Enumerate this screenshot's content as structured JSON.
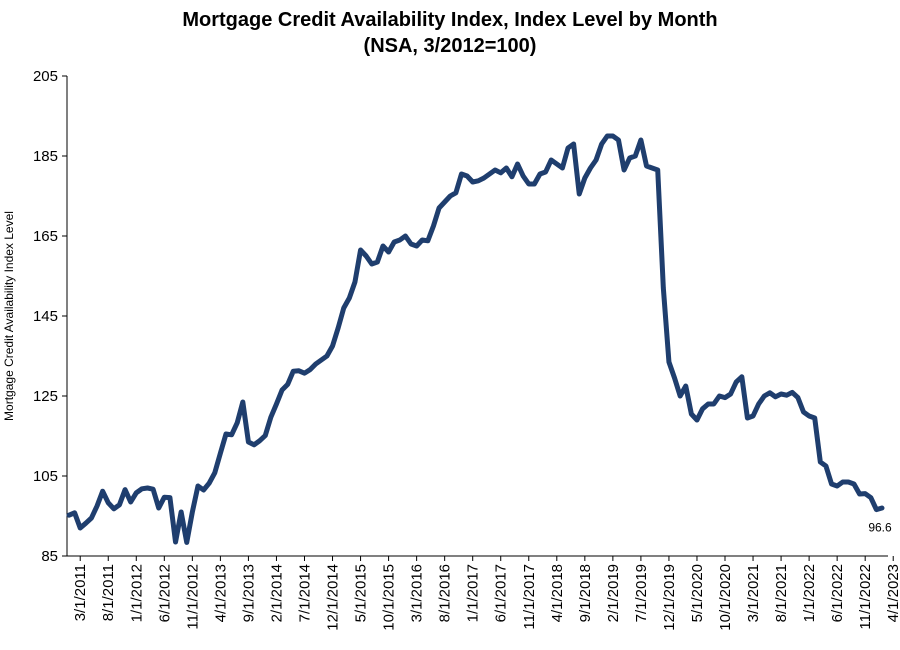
{
  "chart_data": {
    "type": "line",
    "title": "Mortgage Credit Availability Index, Index Level by Month",
    "subtitle": "(NSA, 3/2012=100)",
    "xlabel": "",
    "ylabel": "Mortgage Credit Availability Index Level",
    "ylim": [
      85,
      205
    ],
    "yticks": [
      85,
      105,
      125,
      145,
      165,
      185,
      205
    ],
    "xticks": [
      "3/1/2011",
      "8/1/2011",
      "1/1/2012",
      "6/1/2012",
      "11/1/2012",
      "4/1/2013",
      "9/1/2013",
      "2/1/2014",
      "7/1/2014",
      "12/1/2014",
      "5/1/2015",
      "10/1/2015",
      "3/1/2016",
      "8/1/2016",
      "1/1/2017",
      "6/1/2017",
      "11/1/2017",
      "4/1/2018",
      "9/1/2018",
      "2/1/2019",
      "7/1/2019",
      "12/1/2019",
      "5/1/2020",
      "10/1/2020",
      "3/1/2021",
      "8/1/2021",
      "1/1/2022",
      "6/1/2022",
      "11/1/2022",
      "4/1/2023"
    ],
    "grid": false,
    "legend": "none",
    "color": "#1f3e6e",
    "annotation": "96.6",
    "series": [
      {
        "start": "2011-01",
        "values": [
          95.2,
          95.8,
          92.0,
          93.2,
          94.5,
          97.5,
          101.2,
          98.3,
          96.8,
          97.8,
          101.6,
          98.5,
          100.8,
          101.8,
          102.0,
          101.7,
          97.0,
          99.7,
          99.6,
          88.5,
          96.0,
          88.4,
          96.0,
          102.5,
          101.5,
          103.2,
          105.8,
          110.7,
          115.5,
          115.3,
          118.3,
          123.5,
          113.5,
          112.8,
          113.8,
          115.1,
          119.7,
          123.0,
          126.5,
          127.9,
          131.2,
          131.3,
          130.7,
          131.6,
          133.0,
          134.0,
          135.0,
          137.5,
          142.0,
          147.0,
          149.5,
          153.5,
          161.5,
          160.0,
          158.0,
          158.5,
          162.5,
          161.0,
          163.5,
          164.0,
          165.0,
          163.0,
          162.5,
          164.0,
          163.8,
          167.5,
          172.0,
          173.5,
          175.0,
          175.8,
          180.5,
          180.0,
          178.5,
          178.8,
          179.5,
          180.5,
          181.5,
          180.8,
          182.0,
          179.8,
          183.0,
          180.0,
          178.0,
          178.0,
          180.5,
          181.0,
          184.0,
          183.0,
          182.0,
          187.0,
          188.0,
          175.5,
          179.5,
          182.0,
          184.0,
          188.0,
          190.0,
          190.0,
          189.0,
          181.5,
          184.5,
          185.0,
          189.0,
          182.5,
          182.0,
          181.5,
          152.0,
          133.5,
          129.5,
          125.0,
          127.5,
          120.5,
          119.0,
          121.8,
          123.0,
          123.0,
          125.0,
          124.6,
          125.5,
          128.5,
          129.8,
          119.5,
          120.0,
          123.0,
          125.0,
          125.8,
          124.8,
          125.5,
          125.2,
          125.9,
          124.6,
          121.0,
          120.0,
          119.5,
          108.5,
          107.5,
          103.0,
          102.5,
          103.5,
          103.5,
          103.0,
          100.5,
          100.6,
          99.6,
          96.6,
          97.0
        ]
      }
    ]
  }
}
